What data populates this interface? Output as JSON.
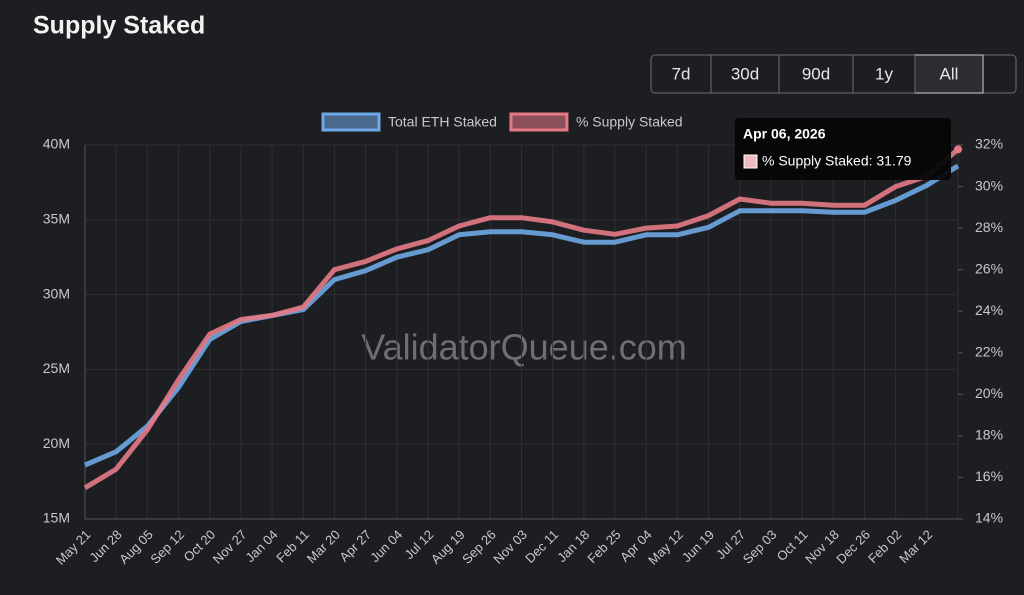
{
  "controls": {
    "ranges": [
      "7d",
      "30d",
      "90d",
      "1y",
      "All"
    ],
    "active": 4
  },
  "watermark": "ValidatorQueue.com",
  "tooltip": {
    "title": "Apr 06, 2026",
    "label": "% Supply Staked: 31.79",
    "series": 1,
    "index": 28
  },
  "chart_data": {
    "type": "line",
    "title": "Supply Staked",
    "categories": [
      "May 21",
      "Jun 28",
      "Aug 05",
      "Sep 12",
      "Oct 20",
      "Nov 27",
      "Jan 04",
      "Feb 11",
      "Mar 20",
      "Apr 27",
      "Jun 04",
      "Jul 12",
      "Aug 19",
      "Sep 26",
      "Nov 03",
      "Dec 11",
      "Jan 18",
      "Feb 25",
      "Apr 04",
      "May 12",
      "Jun 19",
      "Jul 27",
      "Sep 03",
      "Oct 11",
      "Nov 18",
      "Dec 26",
      "Feb 02",
      "Mar 12",
      null
    ],
    "series": [
      {
        "name": "Total ETH Staked",
        "color": "#6fa8e6",
        "values": [
          18600000,
          19500000,
          21200000,
          23800000,
          27000000,
          28200000,
          28600000,
          29000000,
          31000000,
          31600000,
          32500000,
          33000000,
          34000000,
          34200000,
          34200000,
          34000000,
          33500000,
          33500000,
          34000000,
          34000000,
          34500000,
          35600000,
          35600000,
          35600000,
          35500000,
          35500000,
          36300000,
          37300000,
          38600000
        ]
      },
      {
        "name": "% Supply Staked",
        "color": "#e57a86",
        "axis": "y2",
        "values": [
          15.5,
          16.4,
          18.3,
          20.7,
          22.9,
          23.6,
          23.8,
          24.2,
          26.0,
          26.4,
          27.0,
          27.4,
          28.1,
          28.5,
          28.5,
          28.3,
          27.9,
          27.7,
          28.0,
          28.1,
          28.6,
          29.4,
          29.2,
          29.2,
          29.1,
          29.1,
          30.0,
          30.5,
          31.79
        ]
      }
    ],
    "ylim": [
      15000000,
      40000000
    ],
    "yticks": [
      {
        "value": 15000000,
        "label": "15M"
      },
      {
        "value": 20000000,
        "label": "20M"
      },
      {
        "value": 25000000,
        "label": "25M"
      },
      {
        "value": 30000000,
        "label": "30M"
      },
      {
        "value": 35000000,
        "label": "35M"
      },
      {
        "value": 40000000,
        "label": "40M"
      }
    ],
    "y2lim": [
      14,
      32
    ],
    "y2ticks": [
      {
        "value": 14,
        "label": "14%"
      },
      {
        "value": 16,
        "label": "16%"
      },
      {
        "value": 18,
        "label": "18%"
      },
      {
        "value": 20,
        "label": "20%"
      },
      {
        "value": 22,
        "label": "22%"
      },
      {
        "value": 24,
        "label": "24%"
      },
      {
        "value": 26,
        "label": "26%"
      },
      {
        "value": 28,
        "label": "28%"
      },
      {
        "value": 30,
        "label": "30%"
      },
      {
        "value": 32,
        "label": "32%"
      }
    ],
    "grid": true
  }
}
